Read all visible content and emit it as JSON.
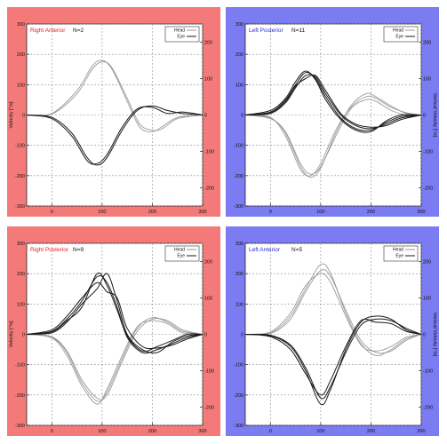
{
  "colors": {
    "red_panel": "#f47a7a",
    "blue_panel": "#7b7bf2",
    "head_trace": "#9a9a9a",
    "eye_trace": "#1a1a1a",
    "grid": "#8c8c8c",
    "title_red": "#e52020",
    "title_blue": "#2a2ad6"
  },
  "chart_data": [
    {
      "type": "line",
      "panel_color": "red",
      "title": "Right Anterior",
      "n_label": "N=2",
      "ylabel_left": "Velocity [°/s]",
      "ylabel_right": "",
      "xlim": [
        -50,
        300
      ],
      "ylim_left": [
        -300,
        300
      ],
      "ylim_right": [
        -250,
        250
      ],
      "x_ticks": [
        "0",
        "100",
        "200",
        "300"
      ],
      "y_ticks_left": [
        "300",
        "200",
        "100",
        "0",
        "-100",
        "-200",
        "-300"
      ],
      "y_ticks_right": [
        "200",
        "100",
        "0",
        "-100",
        "-200"
      ],
      "legend": {
        "position": "top-right",
        "entries": [
          "Head",
          "Eye"
        ]
      },
      "grid": true,
      "series": [
        {
          "name": "Head",
          "kind": "head",
          "x": [
            -50,
            0,
            50,
            80,
            100,
            120,
            150,
            175,
            200,
            220,
            250,
            300
          ],
          "y": [
            0,
            5,
            80,
            160,
            180,
            150,
            45,
            -40,
            -55,
            -38,
            -8,
            0
          ]
        },
        {
          "name": "Head",
          "kind": "head",
          "x": [
            -50,
            0,
            50,
            80,
            100,
            120,
            150,
            175,
            200,
            220,
            250,
            300
          ],
          "y": [
            0,
            3,
            70,
            150,
            175,
            155,
            55,
            -30,
            -50,
            -45,
            -12,
            0
          ]
        },
        {
          "name": "Eye",
          "kind": "eye",
          "x": [
            -50,
            0,
            40,
            70,
            90,
            110,
            140,
            170,
            200,
            230,
            260,
            300
          ],
          "y": [
            0,
            -8,
            -60,
            -140,
            -165,
            -140,
            -50,
            15,
            30,
            15,
            5,
            0
          ]
        },
        {
          "name": "Eye",
          "kind": "eye",
          "x": [
            -50,
            0,
            40,
            70,
            90,
            110,
            140,
            170,
            200,
            230,
            260,
            300
          ],
          "y": [
            0,
            -12,
            -70,
            -150,
            -160,
            -130,
            -40,
            20,
            25,
            5,
            10,
            0
          ]
        }
      ]
    },
    {
      "type": "line",
      "panel_color": "blue",
      "title": "Left Posterior",
      "n_label": "N=11",
      "ylabel_left": "",
      "ylabel_right": "Vertical Velocity [°/s]",
      "xlim": [
        -50,
        300
      ],
      "ylim_left": [
        -300,
        300
      ],
      "ylim_right": [
        -250,
        250
      ],
      "x_ticks": [
        "0",
        "100",
        "200",
        "300"
      ],
      "y_ticks_left": [
        "300",
        "200",
        "100",
        "0",
        "-100",
        "-200",
        "-300"
      ],
      "y_ticks_right": [
        "200",
        "100",
        "0",
        "-100",
        "-200"
      ],
      "legend": {
        "position": "top-right",
        "entries": [
          "Head",
          "Eye"
        ]
      },
      "grid": true,
      "series": [
        {
          "name": "Head",
          "kind": "head",
          "x": [
            -50,
            0,
            30,
            60,
            80,
            100,
            130,
            160,
            190,
            210,
            240,
            270,
            300
          ],
          "y": [
            0,
            -10,
            -60,
            -170,
            -205,
            -175,
            -60,
            30,
            70,
            60,
            30,
            5,
            0
          ]
        },
        {
          "name": "Head",
          "kind": "head",
          "x": [
            -50,
            0,
            30,
            60,
            80,
            100,
            130,
            160,
            190,
            210,
            240,
            270,
            300
          ],
          "y": [
            0,
            -8,
            -70,
            -180,
            -200,
            -160,
            -50,
            25,
            60,
            55,
            25,
            8,
            0
          ]
        },
        {
          "name": "Head",
          "kind": "head",
          "x": [
            -50,
            0,
            30,
            60,
            80,
            100,
            130,
            160,
            190,
            210,
            240,
            270,
            300
          ],
          "y": [
            0,
            -12,
            -55,
            -160,
            -195,
            -170,
            -70,
            20,
            50,
            45,
            15,
            0,
            0
          ]
        },
        {
          "name": "Eye",
          "kind": "eye",
          "x": [
            -50,
            0,
            30,
            50,
            70,
            90,
            110,
            140,
            170,
            200,
            230,
            260,
            300
          ],
          "y": [
            0,
            10,
            50,
            100,
            140,
            120,
            60,
            -10,
            -45,
            -50,
            -25,
            -5,
            0
          ]
        },
        {
          "name": "Eye",
          "kind": "eye",
          "x": [
            -50,
            0,
            30,
            50,
            70,
            90,
            110,
            140,
            170,
            200,
            230,
            260,
            300
          ],
          "y": [
            0,
            5,
            40,
            90,
            130,
            125,
            70,
            0,
            -35,
            -45,
            -30,
            -10,
            0
          ]
        },
        {
          "name": "Eye",
          "kind": "eye",
          "x": [
            -50,
            0,
            30,
            50,
            70,
            90,
            110,
            140,
            170,
            200,
            230,
            260,
            300
          ],
          "y": [
            0,
            15,
            55,
            110,
            145,
            115,
            50,
            -15,
            -50,
            -55,
            -20,
            0,
            0
          ]
        },
        {
          "name": "Eye",
          "kind": "eye",
          "x": [
            -50,
            0,
            30,
            50,
            70,
            90,
            110,
            140,
            170,
            200,
            230,
            260,
            300
          ],
          "y": [
            0,
            8,
            45,
            95,
            120,
            130,
            80,
            5,
            -30,
            -40,
            -35,
            -15,
            0
          ]
        }
      ]
    },
    {
      "type": "line",
      "panel_color": "red",
      "title": "Right Posterior",
      "n_label": "N=9",
      "ylabel_left": "Velocity [°/s]",
      "ylabel_right": "",
      "xlim": [
        -50,
        300
      ],
      "ylim_left": [
        -300,
        300
      ],
      "ylim_right": [
        -250,
        250
      ],
      "x_ticks": [
        "0",
        "100",
        "200",
        "300"
      ],
      "y_ticks_left": [
        "300",
        "200",
        "100",
        "0",
        "-100",
        "-200",
        "-300"
      ],
      "y_ticks_right": [
        "200",
        "100",
        "0",
        "-100",
        "-200"
      ],
      "legend": {
        "position": "top-right",
        "entries": [
          "Head",
          "Eye"
        ]
      },
      "grid": true,
      "series": [
        {
          "name": "Head",
          "kind": "head",
          "x": [
            -50,
            0,
            30,
            60,
            90,
            110,
            140,
            170,
            200,
            230,
            260,
            300
          ],
          "y": [
            0,
            -10,
            -60,
            -160,
            -220,
            -190,
            -80,
            20,
            55,
            40,
            10,
            0
          ]
        },
        {
          "name": "Head",
          "kind": "head",
          "x": [
            -50,
            0,
            30,
            60,
            90,
            110,
            140,
            170,
            200,
            230,
            260,
            300
          ],
          "y": [
            0,
            -8,
            -55,
            -150,
            -210,
            -200,
            -90,
            10,
            50,
            45,
            15,
            0
          ]
        },
        {
          "name": "Head",
          "kind": "head",
          "x": [
            -50,
            0,
            30,
            60,
            90,
            110,
            140,
            170,
            200,
            230,
            260,
            300
          ],
          "y": [
            0,
            -12,
            -70,
            -170,
            -230,
            -180,
            -70,
            25,
            45,
            35,
            5,
            0
          ]
        },
        {
          "name": "Eye",
          "kind": "eye",
          "x": [
            -50,
            0,
            30,
            60,
            90,
            110,
            130,
            150,
            180,
            210,
            240,
            270,
            300
          ],
          "y": [
            0,
            10,
            50,
            110,
            190,
            170,
            90,
            -10,
            -60,
            -50,
            -30,
            -10,
            0
          ]
        },
        {
          "name": "Eye",
          "kind": "eye",
          "x": [
            -50,
            0,
            30,
            60,
            90,
            110,
            130,
            150,
            180,
            210,
            240,
            270,
            300
          ],
          "y": [
            0,
            5,
            40,
            100,
            150,
            200,
            110,
            0,
            -50,
            -60,
            -25,
            -5,
            0
          ]
        },
        {
          "name": "Eye",
          "kind": "eye",
          "x": [
            -50,
            0,
            30,
            60,
            90,
            110,
            130,
            150,
            180,
            210,
            240,
            270,
            300
          ],
          "y": [
            0,
            15,
            60,
            120,
            170,
            140,
            120,
            20,
            -40,
            -45,
            -35,
            -15,
            0
          ]
        },
        {
          "name": "Eye",
          "kind": "eye",
          "x": [
            -50,
            0,
            30,
            60,
            90,
            110,
            130,
            150,
            180,
            210,
            240,
            270,
            300
          ],
          "y": [
            0,
            8,
            45,
            90,
            200,
            160,
            80,
            -5,
            -55,
            -40,
            -20,
            0,
            0
          ]
        }
      ]
    },
    {
      "type": "line",
      "panel_color": "blue",
      "title": "Left Anterior",
      "n_label": "N=5",
      "ylabel_left": "",
      "ylabel_right": "Vertical Velocity [°/s]",
      "xlim": [
        -50,
        300
      ],
      "ylim_left": [
        -300,
        300
      ],
      "ylim_right": [
        -250,
        250
      ],
      "x_ticks": [
        "0",
        "100",
        "200",
        "300"
      ],
      "y_ticks_left": [
        "300",
        "200",
        "100",
        "0",
        "-100",
        "-200",
        "-300"
      ],
      "y_ticks_right": [
        "200",
        "100",
        "0",
        "-100",
        "-200"
      ],
      "legend": {
        "position": "top-right",
        "entries": [
          "Head",
          "Eye"
        ]
      },
      "grid": true,
      "series": [
        {
          "name": "Head",
          "kind": "head",
          "x": [
            -50,
            0,
            40,
            70,
            100,
            120,
            150,
            180,
            210,
            240,
            270,
            300
          ],
          "y": [
            0,
            5,
            60,
            150,
            230,
            200,
            70,
            -30,
            -70,
            -50,
            -15,
            0
          ]
        },
        {
          "name": "Head",
          "kind": "head",
          "x": [
            -50,
            0,
            40,
            70,
            100,
            120,
            150,
            180,
            210,
            240,
            270,
            300
          ],
          "y": [
            0,
            3,
            50,
            140,
            210,
            190,
            80,
            -20,
            -60,
            -55,
            -20,
            0
          ]
        },
        {
          "name": "Head",
          "kind": "head",
          "x": [
            -50,
            0,
            40,
            70,
            100,
            120,
            150,
            180,
            210,
            240,
            270,
            300
          ],
          "y": [
            0,
            8,
            70,
            160,
            200,
            170,
            60,
            -35,
            -55,
            -40,
            -10,
            0
          ]
        },
        {
          "name": "Eye",
          "kind": "eye",
          "x": [
            -50,
            0,
            40,
            70,
            100,
            120,
            150,
            180,
            210,
            240,
            270,
            300
          ],
          "y": [
            0,
            -5,
            -40,
            -120,
            -230,
            -180,
            -50,
            40,
            60,
            50,
            15,
            0
          ]
        },
        {
          "name": "Eye",
          "kind": "eye",
          "x": [
            -50,
            0,
            40,
            70,
            100,
            120,
            150,
            180,
            210,
            240,
            270,
            300
          ],
          "y": [
            0,
            -3,
            -35,
            -110,
            -210,
            -170,
            -60,
            30,
            50,
            45,
            20,
            0
          ]
        },
        {
          "name": "Eye",
          "kind": "eye",
          "x": [
            -50,
            0,
            40,
            70,
            100,
            120,
            150,
            180,
            210,
            240,
            270,
            300
          ],
          "y": [
            0,
            -8,
            -50,
            -130,
            -200,
            -150,
            -40,
            45,
            40,
            35,
            10,
            0
          ]
        }
      ]
    }
  ]
}
